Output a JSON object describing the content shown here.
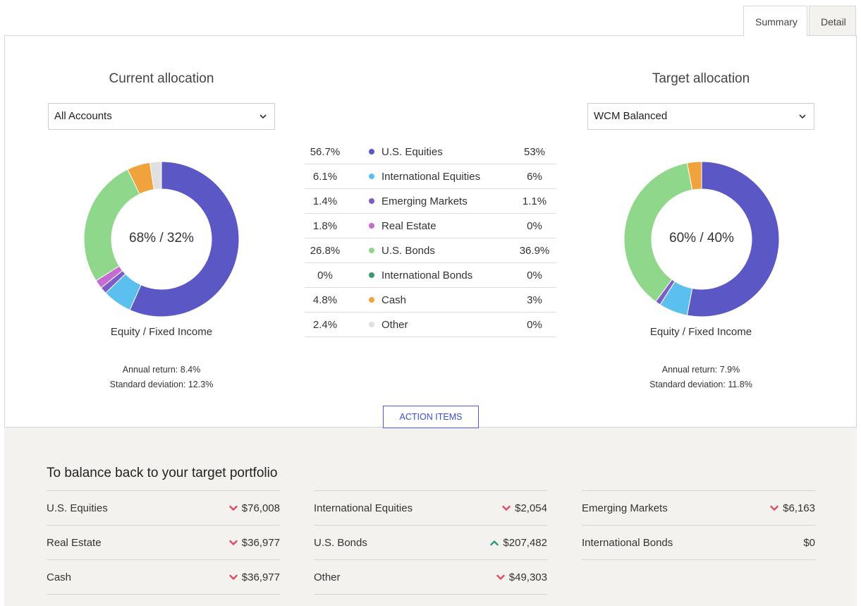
{
  "tabs": [
    {
      "label": "Summary",
      "active": true
    },
    {
      "label": "Detail",
      "active": false
    }
  ],
  "current": {
    "title": "Current allocation",
    "select_value": "All Accounts",
    "center_label": "68% / 32%",
    "sub_label": "Equity / Fixed Income",
    "annual_return": "Annual return: 8.4%",
    "std_dev": "Standard deviation: 12.3%",
    "slices": [
      56.7,
      6.1,
      1.4,
      1.8,
      26.8,
      0,
      4.8,
      2.4
    ]
  },
  "target": {
    "title": "Target allocation",
    "select_value": "WCM Balanced",
    "center_label": "60% / 40%",
    "sub_label": "Equity / Fixed Income",
    "annual_return": "Annual return: 7.9%",
    "std_dev": "Standard deviation: 11.8%",
    "slices": [
      53,
      6,
      1.1,
      0,
      36.9,
      0,
      3,
      0
    ]
  },
  "legend": [
    {
      "current": "56.7%",
      "name": "U.S. Equities",
      "target": "53%",
      "color": "#5b57c4"
    },
    {
      "current": "6.1%",
      "name": "International Equities",
      "target": "6%",
      "color": "#5bc0ee"
    },
    {
      "current": "1.4%",
      "name": "Emerging Markets",
      "target": "1.1%",
      "color": "#7b5cc9"
    },
    {
      "current": "1.8%",
      "name": "Real Estate",
      "target": "0%",
      "color": "#c66bd0"
    },
    {
      "current": "26.8%",
      "name": "U.S. Bonds",
      "target": "36.9%",
      "color": "#8fd78a"
    },
    {
      "current": "0%",
      "name": "International Bonds",
      "target": "0%",
      "color": "#3c9a6e"
    },
    {
      "current": "4.8%",
      "name": "Cash",
      "target": "3%",
      "color": "#f0a23c"
    },
    {
      "current": "2.4%",
      "name": "Other",
      "target": "0%",
      "color": "#e0e0e0"
    }
  ],
  "action_button": "ACTION ITEMS",
  "rebalance": {
    "title": "To balance back to your target portfolio",
    "down_color": "#e04b64",
    "up_color": "#2c9a7c",
    "columns": [
      [
        {
          "name": "U.S. Equities",
          "amount": "$76,008",
          "dir": "down"
        },
        {
          "name": "Real Estate",
          "amount": "$36,977",
          "dir": "down"
        },
        {
          "name": "Cash",
          "amount": "$36,977",
          "dir": "down"
        }
      ],
      [
        {
          "name": "International Equities",
          "amount": "$2,054",
          "dir": "down"
        },
        {
          "name": "U.S. Bonds",
          "amount": "$207,482",
          "dir": "up"
        },
        {
          "name": "Other",
          "amount": "$49,303",
          "dir": "down"
        }
      ],
      [
        {
          "name": "Emerging Markets",
          "amount": "$6,163",
          "dir": "down"
        },
        {
          "name": "International Bonds",
          "amount": "$0",
          "dir": "none"
        }
      ]
    ]
  }
}
